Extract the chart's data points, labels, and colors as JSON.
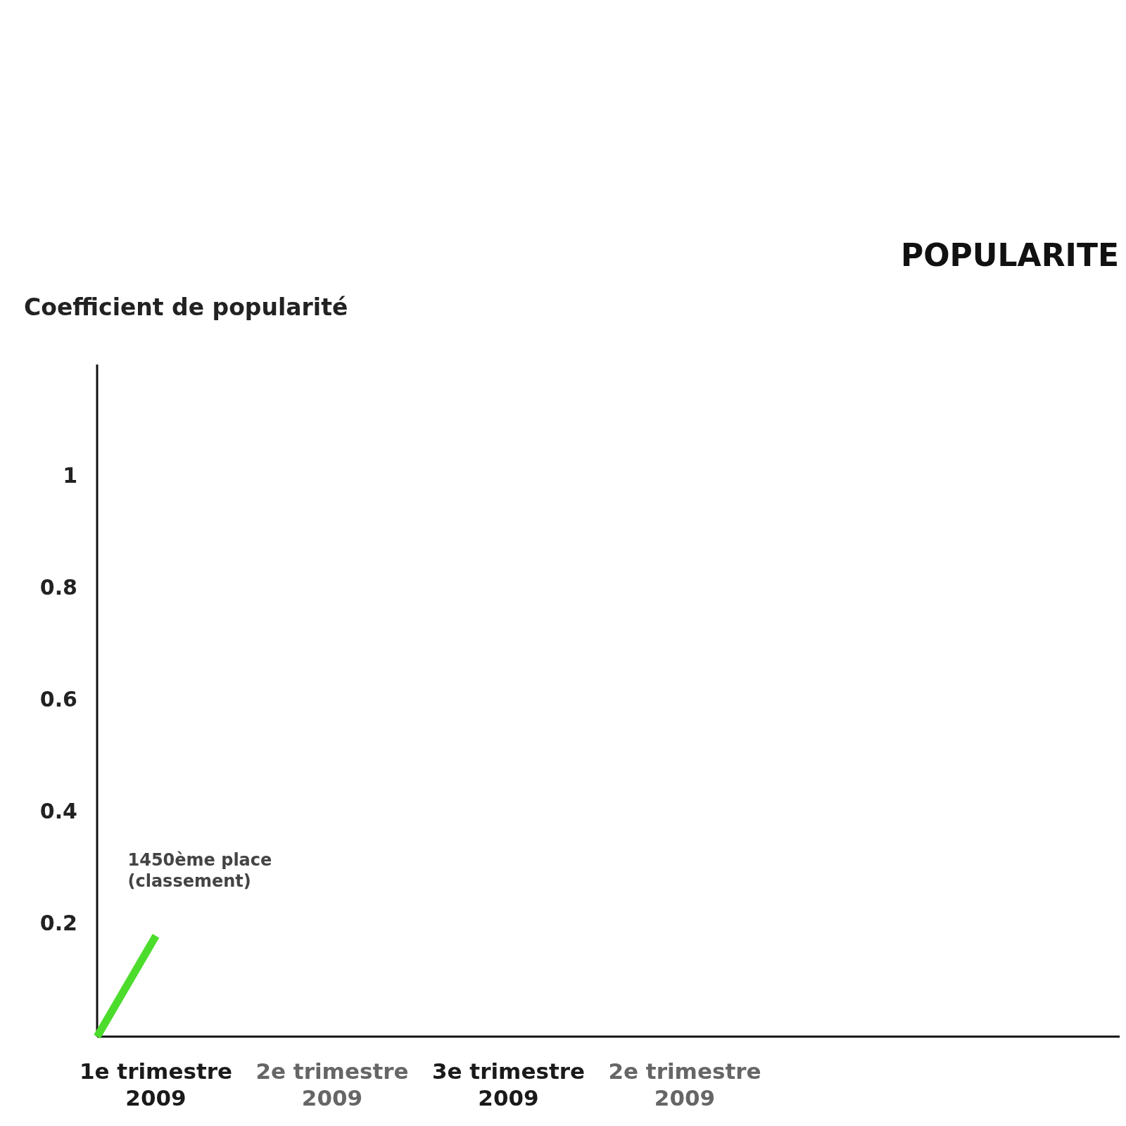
{
  "chart_data": {
    "type": "line",
    "title": "POPULARITE",
    "ylabel": "Coefficient de popularité",
    "categories": [
      null,
      "1e trimestre 2009",
      null,
      null,
      "2e trimestre 2009",
      null,
      null,
      "3e trimestre 2009",
      null,
      null,
      "2e trimestre 2009"
    ],
    "ylim": [
      0,
      1.2
    ],
    "yticks": [
      0.2,
      0.4,
      0.6,
      0.8,
      1
    ],
    "series": [
      {
        "color": "#4cdc2c",
        "values": [
          0,
          0.18,
          null,
          null,
          null,
          null,
          null,
          null,
          null,
          null,
          null
        ]
      }
    ],
    "annotations": [
      "1450ème place (classement)"
    ],
    "grid": false,
    "marker": "none",
    "line_style": "solid"
  }
}
